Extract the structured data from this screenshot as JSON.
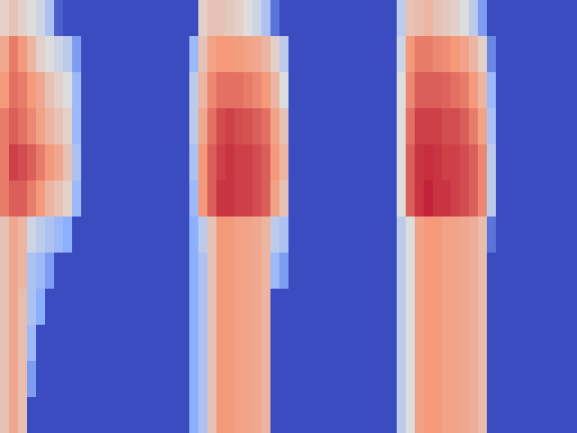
{
  "chart_data": {
    "type": "heatmap",
    "tick_labels": false,
    "zlim": [
      0,
      1
    ],
    "cells": [
      [
        0.55,
        0.6,
        0.55,
        0.5,
        0.45,
        0.35,
        0.05,
        0,
        0,
        0,
        0,
        0,
        0,
        0,
        0,
        0,
        0,
        0,
        0,
        0,
        0,
        0,
        0.55,
        0.6,
        0.6,
        0.58,
        0.55,
        0.5,
        0.45,
        0.35,
        0.1,
        0,
        0,
        0,
        0,
        0,
        0,
        0,
        0,
        0,
        0,
        0,
        0,
        0,
        0.4,
        0.6,
        0.62,
        0.65,
        0.6,
        0.58,
        0.55,
        0.5,
        0.4,
        0.2,
        0,
        0,
        0,
        0,
        0,
        0,
        0,
        0,
        0,
        0
      ],
      [
        0.7,
        0.8,
        0.75,
        0.65,
        0.55,
        0.5,
        0.45,
        0.4,
        0.2,
        0,
        0,
        0,
        0,
        0,
        0,
        0,
        0,
        0,
        0,
        0,
        0,
        0.3,
        0.6,
        0.72,
        0.75,
        0.75,
        0.74,
        0.72,
        0.7,
        0.65,
        0.55,
        0.4,
        0,
        0,
        0,
        0,
        0,
        0,
        0,
        0,
        0,
        0,
        0,
        0,
        0.45,
        0.75,
        0.8,
        0.8,
        0.78,
        0.77,
        0.75,
        0.72,
        0.65,
        0.55,
        0.15,
        0,
        0,
        0,
        0,
        0,
        0,
        0,
        0,
        0
      ],
      [
        0.75,
        0.82,
        0.8,
        0.75,
        0.7,
        0.6,
        0.55,
        0.5,
        0.3,
        0,
        0,
        0,
        0,
        0,
        0,
        0,
        0,
        0,
        0,
        0,
        0,
        0.4,
        0.65,
        0.78,
        0.82,
        0.82,
        0.82,
        0.8,
        0.78,
        0.75,
        0.65,
        0.5,
        0,
        0,
        0,
        0,
        0,
        0,
        0,
        0,
        0,
        0,
        0,
        0,
        0.5,
        0.78,
        0.85,
        0.85,
        0.85,
        0.84,
        0.82,
        0.8,
        0.75,
        0.65,
        0.3,
        0,
        0,
        0,
        0,
        0,
        0,
        0,
        0,
        0
      ],
      [
        0.8,
        0.85,
        0.82,
        0.78,
        0.72,
        0.65,
        0.6,
        0.55,
        0.3,
        0,
        0,
        0,
        0,
        0,
        0,
        0,
        0,
        0,
        0,
        0,
        0,
        0.4,
        0.7,
        0.82,
        0.88,
        0.9,
        0.88,
        0.87,
        0.85,
        0.82,
        0.72,
        0.6,
        0,
        0,
        0,
        0,
        0,
        0,
        0,
        0,
        0,
        0,
        0,
        0,
        0.5,
        0.82,
        0.9,
        0.9,
        0.9,
        0.88,
        0.88,
        0.85,
        0.8,
        0.72,
        0.35,
        0,
        0,
        0,
        0,
        0,
        0,
        0,
        0,
        0
      ],
      [
        0.8,
        0.9,
        0.88,
        0.85,
        0.8,
        0.75,
        0.7,
        0.6,
        0.35,
        0,
        0,
        0,
        0,
        0,
        0,
        0,
        0,
        0,
        0,
        0,
        0,
        0.35,
        0.75,
        0.85,
        0.9,
        0.92,
        0.9,
        0.9,
        0.88,
        0.85,
        0.75,
        0.65,
        0,
        0,
        0,
        0,
        0,
        0,
        0,
        0,
        0,
        0,
        0,
        0,
        0.5,
        0.85,
        0.92,
        0.93,
        0.92,
        0.9,
        0.9,
        0.88,
        0.85,
        0.78,
        0.4,
        0,
        0,
        0,
        0,
        0,
        0,
        0,
        0,
        0
      ],
      [
        0.8,
        0.85,
        0.85,
        0.8,
        0.75,
        0.65,
        0.6,
        0.55,
        0.3,
        0,
        0,
        0,
        0,
        0,
        0,
        0,
        0,
        0,
        0,
        0,
        0,
        0.3,
        0.75,
        0.85,
        0.92,
        0.92,
        0.9,
        0.9,
        0.88,
        0.85,
        0.72,
        0.6,
        0,
        0,
        0,
        0,
        0,
        0,
        0,
        0,
        0,
        0,
        0,
        0,
        0.5,
        0.85,
        0.92,
        0.95,
        0.92,
        0.92,
        0.9,
        0.88,
        0.85,
        0.78,
        0.4,
        0,
        0,
        0,
        0,
        0,
        0,
        0,
        0,
        0
      ],
      [
        0.6,
        0.7,
        0.65,
        0.45,
        0.4,
        0.35,
        0.3,
        0.25,
        0,
        0,
        0,
        0,
        0,
        0,
        0,
        0,
        0,
        0,
        0,
        0,
        0,
        0.25,
        0.4,
        0.6,
        0.75,
        0.75,
        0.72,
        0.72,
        0.7,
        0.65,
        0.4,
        0.35,
        0,
        0,
        0,
        0,
        0,
        0,
        0,
        0,
        0,
        0,
        0,
        0,
        0.4,
        0.5,
        0.72,
        0.75,
        0.75,
        0.72,
        0.72,
        0.7,
        0.68,
        0.62,
        0.1,
        0,
        0,
        0,
        0,
        0,
        0,
        0,
        0,
        0
      ],
      [
        0.6,
        0.7,
        0.65,
        0.35,
        0.3,
        0.2,
        0,
        0,
        0,
        0,
        0,
        0,
        0,
        0,
        0,
        0,
        0,
        0,
        0,
        0,
        0,
        0.25,
        0.35,
        0.6,
        0.75,
        0.75,
        0.72,
        0.72,
        0.7,
        0.65,
        0.3,
        0.2,
        0,
        0,
        0,
        0,
        0,
        0,
        0,
        0,
        0,
        0,
        0,
        0,
        0.4,
        0.5,
        0.72,
        0.75,
        0.75,
        0.72,
        0.72,
        0.7,
        0.68,
        0.62,
        0,
        0,
        0,
        0,
        0,
        0,
        0,
        0,
        0,
        0
      ],
      [
        0.6,
        0.7,
        0.62,
        0.35,
        0.25,
        0,
        0,
        0,
        0,
        0,
        0,
        0,
        0,
        0,
        0,
        0,
        0,
        0,
        0,
        0,
        0,
        0.25,
        0.35,
        0.6,
        0.75,
        0.75,
        0.72,
        0.72,
        0.7,
        0.65,
        0,
        0,
        0,
        0,
        0,
        0,
        0,
        0,
        0,
        0,
        0,
        0,
        0,
        0,
        0.4,
        0.5,
        0.72,
        0.75,
        0.75,
        0.72,
        0.72,
        0.7,
        0.68,
        0.62,
        0,
        0,
        0,
        0,
        0,
        0,
        0,
        0,
        0,
        0
      ],
      [
        0.6,
        0.7,
        0.62,
        0.3,
        0,
        0,
        0,
        0,
        0,
        0,
        0,
        0,
        0,
        0,
        0,
        0,
        0,
        0,
        0,
        0,
        0,
        0.25,
        0.35,
        0.6,
        0.75,
        0.75,
        0.72,
        0.72,
        0.7,
        0.65,
        0,
        0,
        0,
        0,
        0,
        0,
        0,
        0,
        0,
        0,
        0,
        0,
        0,
        0,
        0.4,
        0.5,
        0.72,
        0.75,
        0.75,
        0.72,
        0.72,
        0.7,
        0.68,
        0.62,
        0,
        0,
        0,
        0,
        0,
        0,
        0,
        0,
        0,
        0
      ],
      [
        0.6,
        0.7,
        0.62,
        0.2,
        0,
        0,
        0,
        0,
        0,
        0,
        0,
        0,
        0,
        0,
        0,
        0,
        0,
        0,
        0,
        0,
        0,
        0.25,
        0.35,
        0.6,
        0.75,
        0.75,
        0.72,
        0.72,
        0.7,
        0.65,
        0,
        0,
        0,
        0,
        0,
        0,
        0,
        0,
        0,
        0,
        0,
        0,
        0,
        0,
        0.4,
        0.5,
        0.72,
        0.75,
        0.75,
        0.72,
        0.72,
        0.7,
        0.68,
        0.62,
        0,
        0,
        0,
        0,
        0,
        0,
        0,
        0,
        0,
        0
      ],
      [
        0.6,
        0.7,
        0.62,
        0,
        0,
        0,
        0,
        0,
        0,
        0,
        0,
        0,
        0,
        0,
        0,
        0,
        0,
        0,
        0,
        0,
        0,
        0.25,
        0.35,
        0.6,
        0.75,
        0.75,
        0.72,
        0.72,
        0.7,
        0.65,
        0,
        0,
        0,
        0,
        0,
        0,
        0,
        0,
        0,
        0,
        0,
        0,
        0,
        0,
        0.4,
        0.5,
        0.72,
        0.75,
        0.75,
        0.72,
        0.72,
        0.7,
        0.68,
        0.62,
        0,
        0,
        0,
        0,
        0,
        0,
        0,
        0,
        0,
        0
      ]
    ]
  }
}
